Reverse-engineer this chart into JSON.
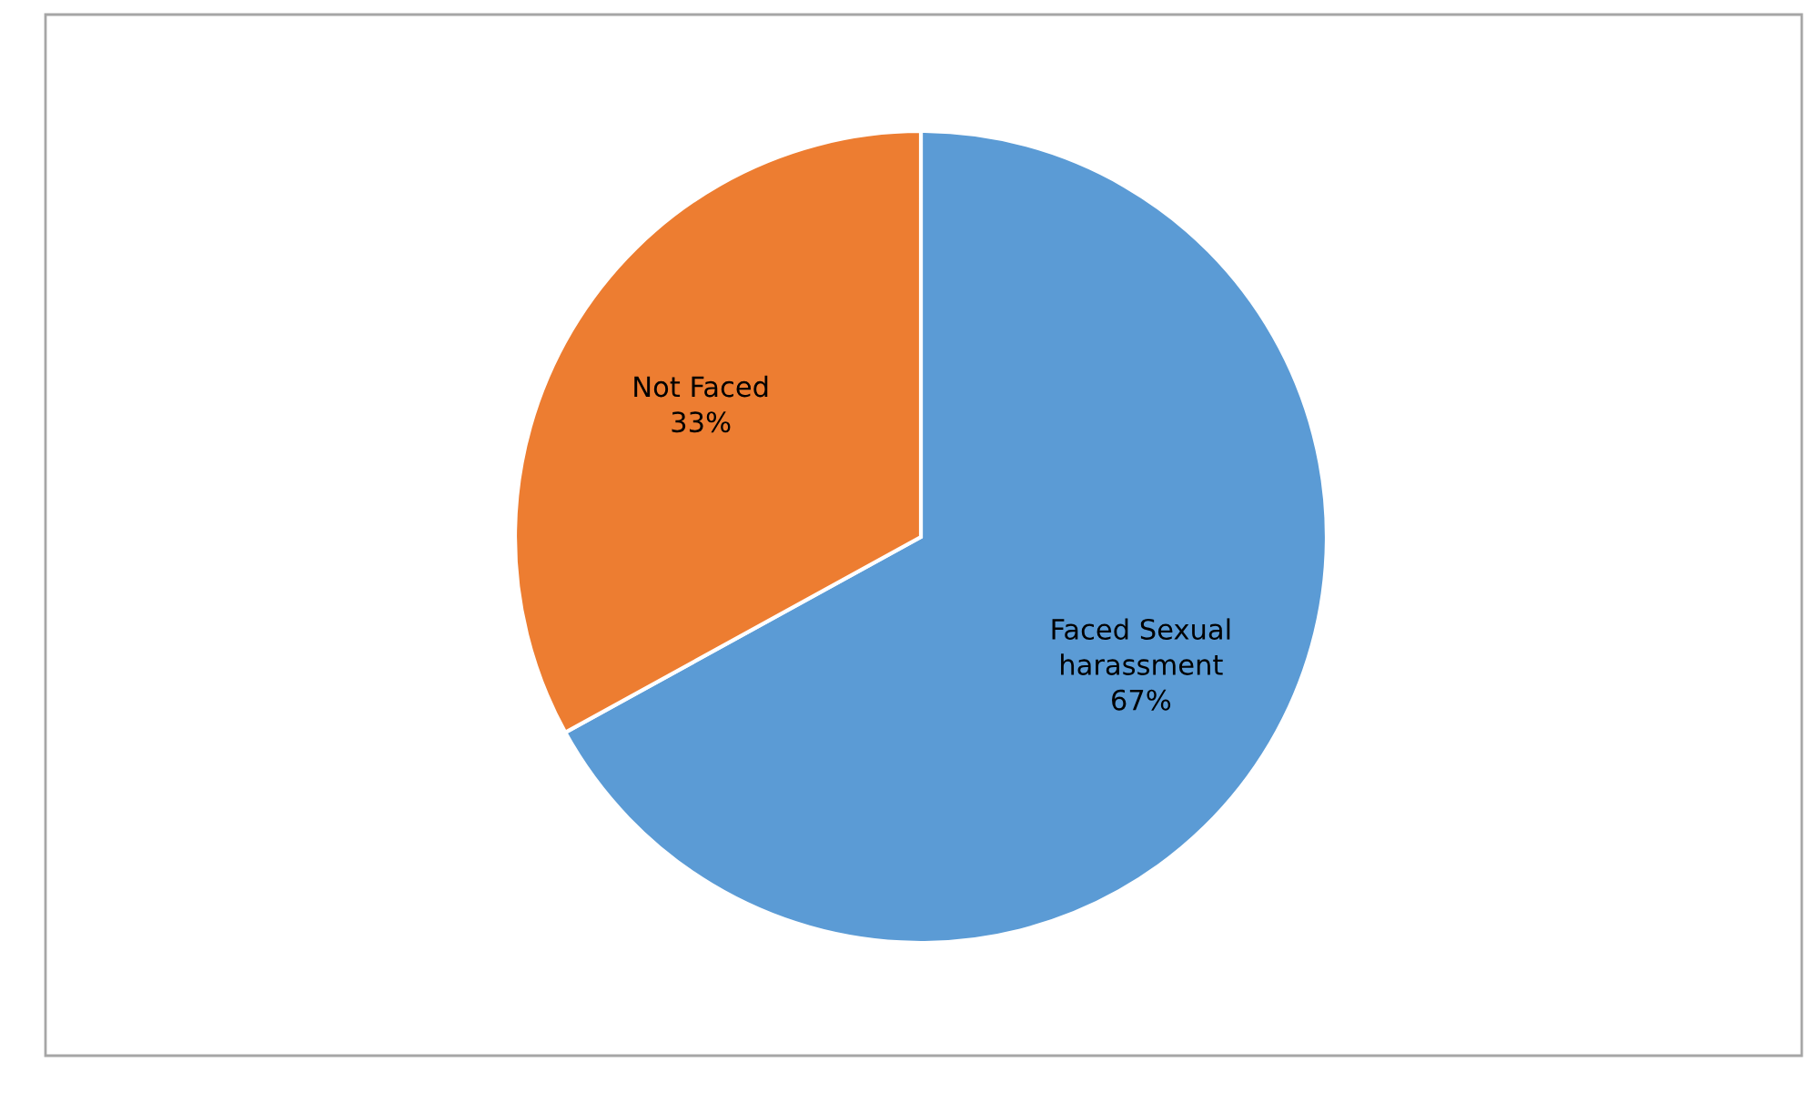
{
  "chart_data": {
    "type": "pie",
    "categories": [
      "Faced Sexual\nharassment",
      "Not Faced"
    ],
    "values": [
      67,
      33
    ],
    "value_labels": [
      "67%",
      "33%"
    ],
    "colors": [
      "#5b9bd5",
      "#ed7d31"
    ],
    "legend": false
  }
}
